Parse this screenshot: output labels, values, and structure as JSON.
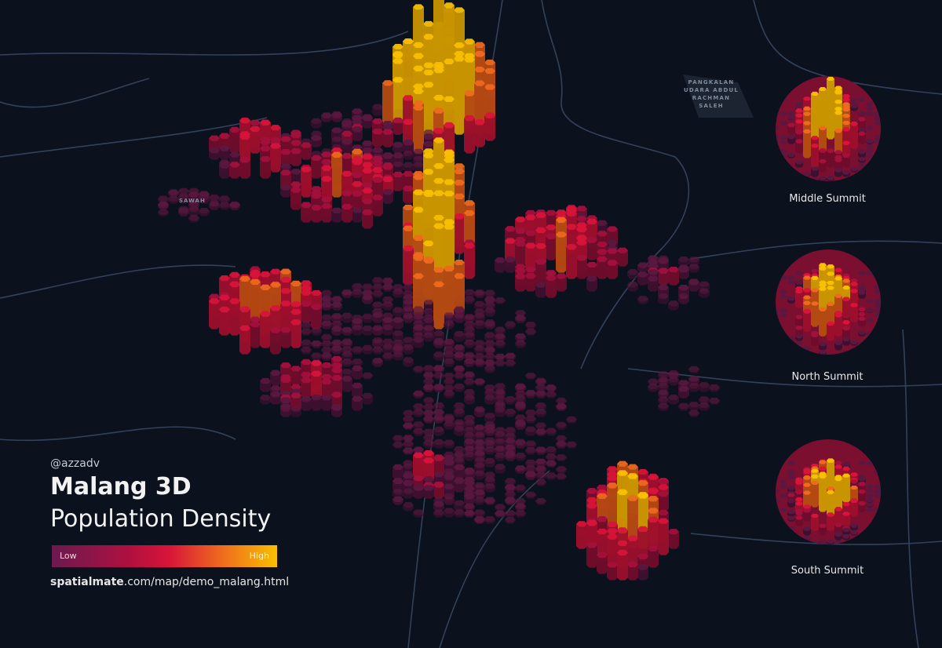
{
  "map": {
    "labels": {
      "airport": [
        "PANGKALAN",
        "UDARA ABDUL",
        "RACHMAN",
        "SALEH"
      ],
      "district": "SAWAH"
    }
  },
  "overlay": {
    "credit": "@azzadv",
    "title_line1": "Malang 3D",
    "title_line2": "Population Density",
    "legend": {
      "low": "Low",
      "high": "High",
      "colors": [
        "#6b1a4f",
        "#d8143a",
        "#ee6a1e",
        "#f8c000"
      ]
    },
    "url_bold": "spatialmate",
    "url_rest": ".com/map/demo_malang.html"
  },
  "summits": [
    {
      "label": "Middle Summit"
    },
    {
      "label": "North Summit"
    },
    {
      "label": "South Summit"
    }
  ]
}
